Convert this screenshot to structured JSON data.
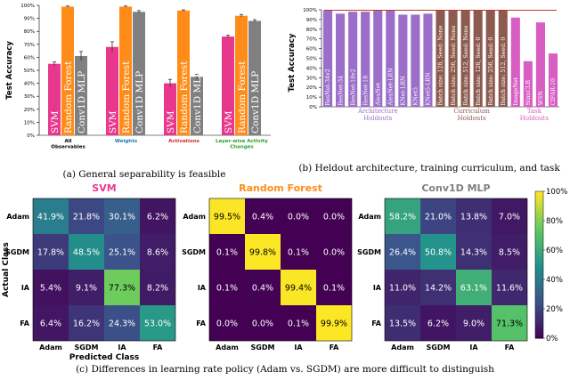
{
  "chart_data": [
    {
      "id": "a",
      "type": "bar",
      "ylabel": "Test Accuracy",
      "caption": "(a) General separability is feasible",
      "ylim": [
        0,
        100
      ],
      "yticks": [
        "0%",
        "10%",
        "20%",
        "30%",
        "40%",
        "50%",
        "60%",
        "70%",
        "80%",
        "90%",
        "100%"
      ],
      "categories": [
        "All Observables",
        "Weights",
        "Activations",
        "Layer-wise Activity Changes"
      ],
      "category_colors": [
        "#000000",
        "#1f77b4",
        "#d62728",
        "#2ca02c"
      ],
      "series": [
        {
          "name": "SVM",
          "color": "#e8388e",
          "values": [
            55,
            68,
            40,
            76
          ],
          "errors": [
            1.5,
            4,
            3,
            1
          ]
        },
        {
          "name": "Random Forest",
          "color": "#ff8c19",
          "values": [
            99,
            99,
            96,
            92
          ],
          "errors": [
            0.5,
            0.5,
            0.5,
            1
          ]
        },
        {
          "name": "Conv1D MLP",
          "color": "#808080",
          "values": [
            61,
            95,
            45,
            88
          ],
          "errors": [
            3.5,
            1,
            2,
            1
          ]
        }
      ]
    },
    {
      "id": "b",
      "type": "bar",
      "ylabel": "Test Accuracy",
      "caption": "(b) Heldout architecture, training curriculum, and task",
      "ylim": [
        0,
        100
      ],
      "yticks": [
        "0%",
        "10%",
        "20%",
        "30%",
        "40%",
        "50%",
        "60%",
        "70%",
        "80%",
        "90%",
        "100%"
      ],
      "reference_line": 99.5,
      "reference_color": "#c0392b",
      "categories": [
        "ResNet-34v2",
        "ResNet-34",
        "ResNet-18v2",
        "ResNet-18",
        "AlexNet",
        "AlexNet-LRN",
        "KNet-LRN",
        "KNet5",
        "KNet5-LRN",
        "Batch size: 128, Seed: None",
        "Batch size: 256, Seed: None",
        "Batch size: 512, Seed: None",
        "Batch size: 128, Seed: 0",
        "Batch size: 256, Seed: 0",
        "Batch size: 512, Seed: 0",
        "ImageNet",
        "StimCLR",
        "WSN",
        "CIFAR-10"
      ],
      "values": [
        99.5,
        96,
        98,
        98,
        100,
        100,
        95,
        95,
        96,
        99.5,
        99.5,
        99.5,
        99.5,
        99.5,
        99.5,
        92,
        47,
        87,
        55
      ],
      "colors": [
        "#9b6fc9",
        "#9b6fc9",
        "#9b6fc9",
        "#9b6fc9",
        "#9b6fc9",
        "#9b6fc9",
        "#9b6fc9",
        "#9b6fc9",
        "#9b6fc9",
        "#8c5a4e",
        "#8c5a4e",
        "#8c5a4e",
        "#8c5a4e",
        "#8c5a4e",
        "#8c5a4e",
        "#d85ec4",
        "#d85ec4",
        "#d85ec4",
        "#d85ec4"
      ],
      "groups": [
        {
          "label": "Architecture Holdouts",
          "start": 0,
          "end": 8,
          "color": "#9b6fc9"
        },
        {
          "label": "Curriculum Holdouts",
          "start": 9,
          "end": 14,
          "color": "#8c5a4e"
        },
        {
          "label": "Task Holdouts",
          "start": 15,
          "end": 18,
          "color": "#d85ec4"
        }
      ]
    },
    {
      "id": "c",
      "type": "heatmap",
      "caption": "(c) Differences in learning rate policy (Adam vs. SGDM) are more difficult to distinguish",
      "xlabel": "Predicted Class",
      "ylabel": "Actual Class",
      "classes": [
        "Adam",
        "SGDM",
        "IA",
        "FA"
      ],
      "colorbar_ticks": [
        "0%",
        "20%",
        "40%",
        "60%",
        "80%",
        "100%"
      ],
      "matrices": [
        {
          "title": "SVM",
          "title_color": "#e8388e",
          "values": [
            [
              41.9,
              21.8,
              30.1,
              6.2
            ],
            [
              17.8,
              48.5,
              25.1,
              8.6
            ],
            [
              5.4,
              9.1,
              77.3,
              8.2
            ],
            [
              6.4,
              16.2,
              24.3,
              53.0
            ]
          ]
        },
        {
          "title": "Random Forest",
          "title_color": "#ff8c19",
          "values": [
            [
              99.5,
              0.4,
              0.0,
              0.0
            ],
            [
              0.1,
              99.8,
              0.1,
              0.0
            ],
            [
              0.1,
              0.4,
              99.4,
              0.1
            ],
            [
              0.0,
              0.0,
              0.1,
              99.9
            ]
          ]
        },
        {
          "title": "Conv1D MLP",
          "title_color": "#808080",
          "values": [
            [
              58.2,
              21.0,
              13.8,
              7.0
            ],
            [
              26.4,
              50.8,
              14.3,
              8.5
            ],
            [
              11.0,
              14.2,
              63.1,
              11.6
            ],
            [
              13.5,
              6.2,
              9.0,
              71.3
            ]
          ]
        }
      ]
    }
  ]
}
